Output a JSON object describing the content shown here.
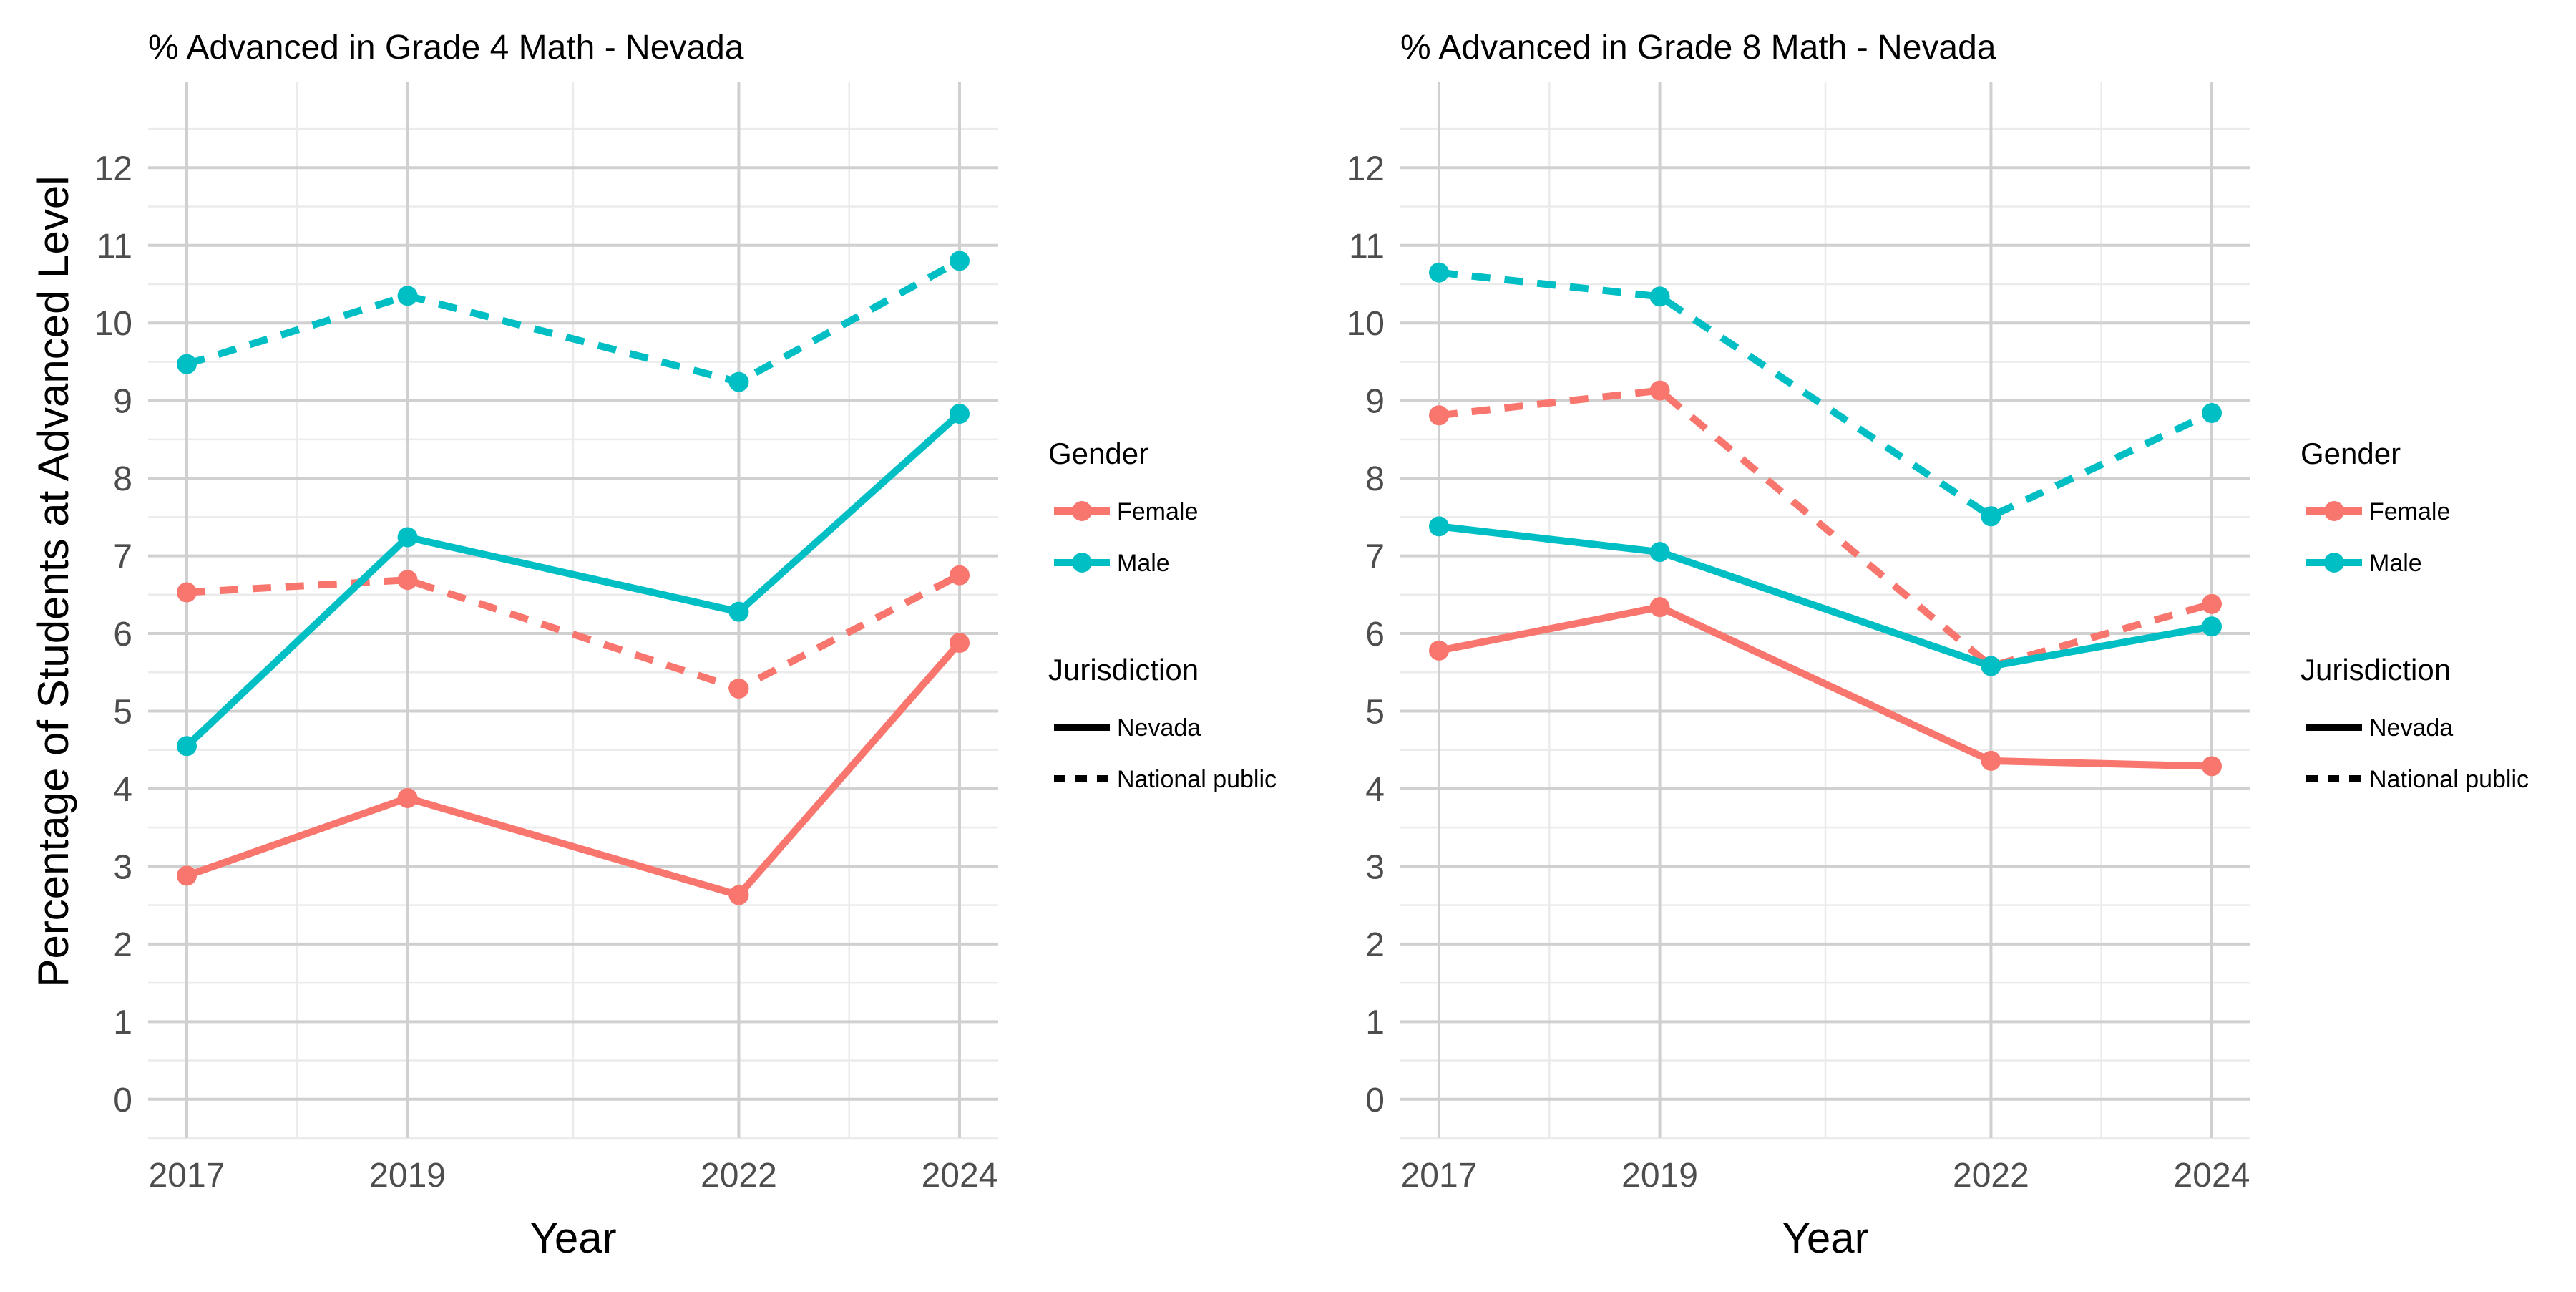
{
  "chart_data": [
    {
      "type": "line",
      "title": "% Advanced in Grade 4 Math - Nevada",
      "xlabel": "Year",
      "ylabel": "Percentage of Students at Advanced Level",
      "x": [
        2017,
        2019,
        2022,
        2024
      ],
      "xlim": [
        2016.65,
        2024.35
      ],
      "ylim": [
        -0.5,
        13.1
      ],
      "yticks": [
        0,
        1,
        2,
        3,
        4,
        5,
        6,
        7,
        8,
        9,
        10,
        11,
        12
      ],
      "grid": true,
      "legend_position": "right",
      "series": [
        {
          "gender": "Female",
          "jurisdiction": "Nevada",
          "color": "#F8766D",
          "linetype": "solid",
          "values": [
            2.88,
            3.88,
            2.63,
            5.88
          ]
        },
        {
          "gender": "Female",
          "jurisdiction": "National public",
          "color": "#F8766D",
          "linetype": "dashed",
          "values": [
            6.53,
            6.69,
            5.29,
            6.75
          ]
        },
        {
          "gender": "Male",
          "jurisdiction": "Nevada",
          "color": "#00BFC4",
          "linetype": "solid",
          "values": [
            4.55,
            7.24,
            6.28,
            8.83
          ]
        },
        {
          "gender": "Male",
          "jurisdiction": "National public",
          "color": "#00BFC4",
          "linetype": "dashed",
          "values": [
            9.47,
            10.35,
            9.24,
            10.8
          ]
        }
      ]
    },
    {
      "type": "line",
      "title": "% Advanced in Grade 8 Math - Nevada",
      "xlabel": "Year",
      "ylabel": "",
      "x": [
        2017,
        2019,
        2022,
        2024
      ],
      "xlim": [
        2016.65,
        2024.35
      ],
      "ylim": [
        -0.5,
        13.1
      ],
      "yticks": [
        0,
        1,
        2,
        3,
        4,
        5,
        6,
        7,
        8,
        9,
        10,
        11,
        12
      ],
      "grid": true,
      "legend_position": "right",
      "series": [
        {
          "gender": "Female",
          "jurisdiction": "Nevada",
          "color": "#F8766D",
          "linetype": "solid",
          "values": [
            5.78,
            6.34,
            4.36,
            4.29
          ]
        },
        {
          "gender": "Female",
          "jurisdiction": "National public",
          "color": "#F8766D",
          "linetype": "dashed",
          "values": [
            8.81,
            9.13,
            5.58,
            6.38
          ]
        },
        {
          "gender": "Male",
          "jurisdiction": "Nevada",
          "color": "#00BFC4",
          "linetype": "solid",
          "values": [
            7.38,
            7.05,
            5.58,
            6.09
          ]
        },
        {
          "gender": "Male",
          "jurisdiction": "National public",
          "color": "#00BFC4",
          "linetype": "dashed",
          "values": [
            10.65,
            10.34,
            7.51,
            8.84
          ]
        }
      ]
    }
  ],
  "legend": {
    "gender_title": "Gender",
    "gender_items": [
      {
        "label": "Female",
        "color": "#F8766D"
      },
      {
        "label": "Male",
        "color": "#00BFC4"
      }
    ],
    "jurisdiction_title": "Jurisdiction",
    "jurisdiction_items": [
      {
        "label": "Nevada",
        "linetype": "solid"
      },
      {
        "label": "National public",
        "linetype": "dashed"
      }
    ]
  }
}
